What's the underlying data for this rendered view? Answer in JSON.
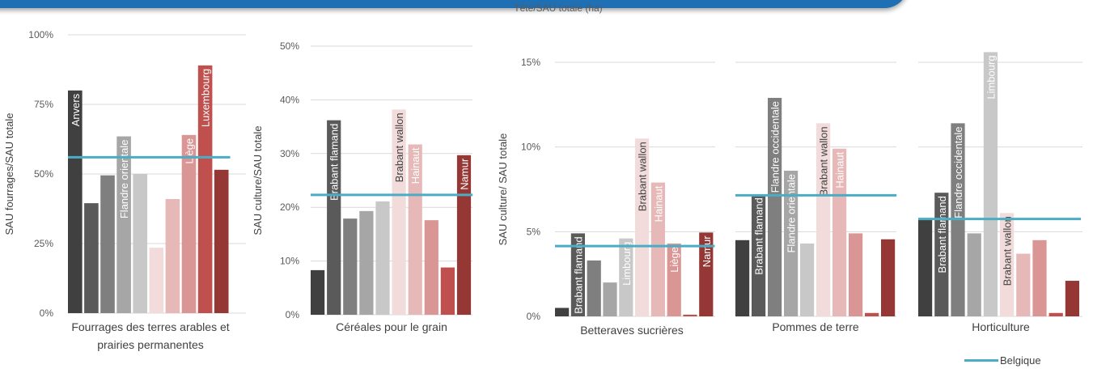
{
  "header": {
    "caption": "Tête/SAU totale (ha)"
  },
  "legend": {
    "label": "Belgique",
    "color": "#4bacc6"
  },
  "colors": [
    "#404040",
    "#5a5a5a",
    "#7f7f7f",
    "#a6a6a6",
    "#c8c8c8",
    "#f2dcdb",
    "#e6b9b8",
    "#d99694",
    "#c0504d",
    "#953735"
  ],
  "chart_data": [
    {
      "type": "bar",
      "title": "",
      "xlabel": "Fourrages des terres arables et prairies permanentes",
      "ylabel": "SAU fourrages/SAU totale",
      "ylim": [
        0,
        100
      ],
      "yticks": [
        "0%",
        "25%",
        "50%",
        "75%",
        "100%"
      ],
      "values": [
        80,
        39.5,
        49.5,
        63.5,
        50,
        23.5,
        41,
        64,
        89,
        51.5
      ],
      "bar_labels": [
        "Anvers",
        "",
        "",
        "Flandre orientale",
        "",
        "",
        "",
        "Liège",
        "Luxembourg",
        ""
      ],
      "reference_line": {
        "name": "Belgique",
        "value": 56
      }
    },
    {
      "type": "bar",
      "title": "",
      "xlabel": "Céréales pour le grain",
      "ylabel": "SAU culture/SAU totale",
      "ylim": [
        0,
        50
      ],
      "yticks": [
        "0%",
        "10%",
        "20%",
        "30%",
        "40%",
        "50%"
      ],
      "values": [
        8.3,
        36.2,
        17.9,
        19.3,
        21.1,
        38.2,
        31.7,
        17.6,
        8.8,
        29.7
      ],
      "bar_labels": [
        "",
        "Brabant flamand",
        "",
        "",
        "",
        "Brabant wallon",
        "Hainaut",
        "",
        "",
        "Namur"
      ],
      "reference_line": {
        "name": "Belgique",
        "value": 22.3
      }
    },
    {
      "type": "bar",
      "title": "",
      "xlabel": "Betteraves sucrières",
      "ylabel": "SAU culture/ SAU totale",
      "ylim": [
        0,
        15
      ],
      "yticks": [
        "0%",
        "5%",
        "10%",
        "15%"
      ],
      "values": [
        0.5,
        4.9,
        3.3,
        2.0,
        4.6,
        10.5,
        7.9,
        4.3,
        0.1,
        4.95
      ],
      "bar_labels": [
        "",
        "Brabant flamand",
        "",
        "",
        "Limbourg",
        "Brabant wallon",
        "Hainaut",
        "Liège",
        "",
        "Namur"
      ],
      "reference_line": {
        "name": "Belgique",
        "value": 4.15
      }
    },
    {
      "type": "bar",
      "title": "",
      "xlabel": "Pommes de terre",
      "ylabel": "",
      "ylim": [
        0,
        15
      ],
      "yticks": [],
      "values": [
        4.5,
        7.2,
        12.9,
        8.6,
        4.3,
        11.4,
        9.9,
        4.9,
        0.2,
        4.55
      ],
      "bar_labels": [
        "",
        "Brabant flamand",
        "Flandre occidentale",
        "Flandre orientale",
        "",
        "Brabant wallon",
        "Hainaut",
        "",
        "",
        ""
      ],
      "reference_line": {
        "name": "Belgique",
        "value": 7.15
      }
    },
    {
      "type": "bar",
      "title": "",
      "xlabel": "Horticulture",
      "ylabel": "",
      "ylim": [
        0,
        15
      ],
      "yticks": [],
      "values": [
        5.7,
        7.3,
        11.4,
        4.9,
        15.6,
        6.1,
        3.7,
        4.5,
        0.2,
        2.1
      ],
      "bar_labels": [
        "",
        "Brabant flamand",
        "Flandre occidentale",
        "",
        "Limbourg",
        "Brabant wallon",
        "",
        "",
        "",
        ""
      ],
      "reference_line": {
        "name": "Belgique",
        "value": 5.75
      }
    }
  ]
}
